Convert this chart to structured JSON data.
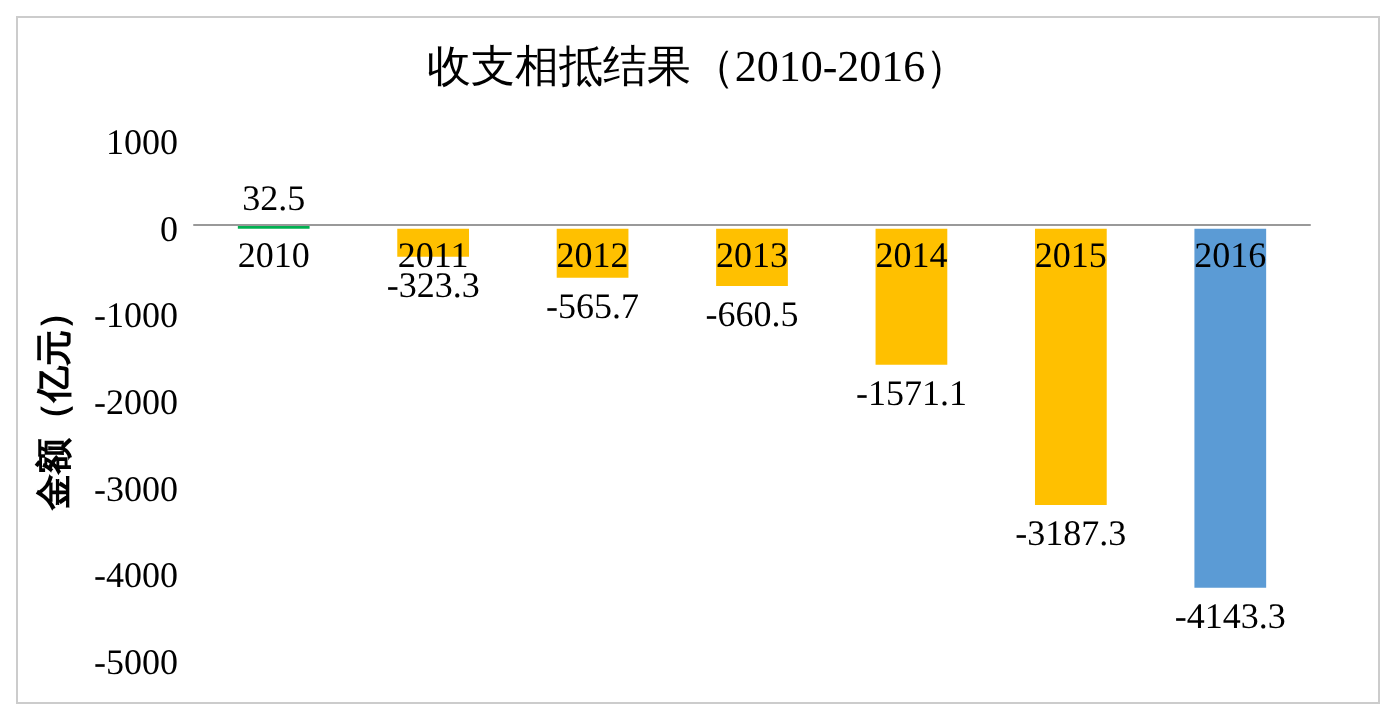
{
  "chart_data": {
    "type": "bar",
    "title": "收支相抵结果（2010-2016）",
    "ylabel": "金额（亿元）",
    "categories": [
      "2010",
      "2011",
      "2012",
      "2013",
      "2014",
      "2015",
      "2016"
    ],
    "values": [
      32.5,
      -323.3,
      -565.7,
      -660.5,
      -1571.1,
      -3187.3,
      -4143.3
    ],
    "colors": [
      "#00b050",
      "#ffc000",
      "#ffc000",
      "#ffc000",
      "#ffc000",
      "#ffc000",
      "#5b9bd5"
    ],
    "ylim": [
      -5000,
      1000
    ],
    "yticks": [
      -5000,
      -4000,
      -3000,
      -2000,
      -1000,
      0,
      1000
    ],
    "data_labels": true
  }
}
